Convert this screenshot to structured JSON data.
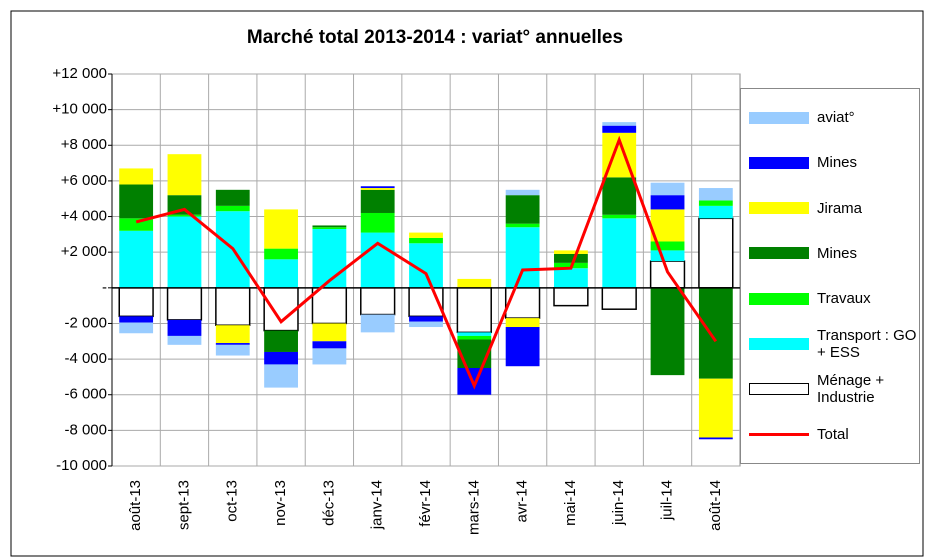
{
  "chart_data": {
    "type": "bar",
    "stacked": true,
    "title": "Marché total 2013-2014 : variat° annuelles",
    "categories": [
      "août-13",
      "sept-13",
      "oct-13",
      "nov-13",
      "déc-13",
      "janv-14",
      "févr-14",
      "mars-14",
      "avr-14",
      "mai-14",
      "juin-14",
      "juil-14",
      "août-14"
    ],
    "series": [
      {
        "name": "Ménage + Industrie",
        "color": "#ffffff",
        "border": "#000000",
        "values": [
          -1600,
          -1800,
          -2100,
          -2400,
          -2000,
          -1500,
          -1600,
          -2500,
          -1700,
          -1000,
          -1200,
          1500,
          3900
        ]
      },
      {
        "name": "Transport : GO + ESS",
        "color": "#00ffff",
        "values": [
          3200,
          4000,
          4300,
          1600,
          3300,
          3100,
          2500,
          -200,
          3400,
          1100,
          3900,
          600,
          700
        ]
      },
      {
        "name": "Travaux",
        "color": "#00ff00",
        "values": [
          700,
          100,
          300,
          600,
          100,
          1100,
          300,
          -200,
          200,
          300,
          200,
          500,
          300
        ]
      },
      {
        "name": "Mines",
        "color": "#008000",
        "values": [
          1900,
          1100,
          900,
          -1200,
          100,
          1300,
          0,
          -1600,
          1600,
          500,
          2100,
          -4900,
          -5100
        ]
      },
      {
        "name": "Jirama",
        "color": "#ffff00",
        "values": [
          900,
          2300,
          -1000,
          2200,
          -1000,
          100,
          300,
          500,
          -500,
          200,
          2500,
          1800,
          -3300
        ]
      },
      {
        "name": "Mines",
        "color": "#0000ff",
        "values": [
          -350,
          -900,
          -100,
          -700,
          -400,
          100,
          -300,
          -1500,
          -2200,
          0,
          400,
          800,
          -100
        ]
      },
      {
        "name": "aviat°",
        "color": "#99ccff",
        "values": [
          -600,
          -500,
          -600,
          -1300,
          -900,
          -1000,
          -300,
          0,
          300,
          0,
          200,
          700,
          700
        ]
      },
      {
        "name": "Total",
        "type": "line",
        "color": "#ff0000",
        "values": [
          3700,
          4400,
          2200,
          -1900,
          400,
          2500,
          800,
          -5500,
          1000,
          1100,
          8300,
          900,
          -3000
        ]
      }
    ],
    "ylim": [
      -10000,
      12000
    ],
    "yticks": [
      {
        "value": -10000,
        "label": "-10 000"
      },
      {
        "value": -8000,
        "label": "-8 000"
      },
      {
        "value": -6000,
        "label": "-6 000"
      },
      {
        "value": -4000,
        "label": "-4 000"
      },
      {
        "value": -2000,
        "label": "-2 000"
      },
      {
        "value": 0,
        "label": "-"
      },
      {
        "value": 2000,
        "label": "+2 000"
      },
      {
        "value": 4000,
        "label": "+4 000"
      },
      {
        "value": 6000,
        "label": "+6 000"
      },
      {
        "value": 8000,
        "label": "+8 000"
      },
      {
        "value": 10000,
        "label": "+10 000"
      },
      {
        "value": 12000,
        "label": "+12 000"
      }
    ],
    "grid": true,
    "legend": "right"
  }
}
